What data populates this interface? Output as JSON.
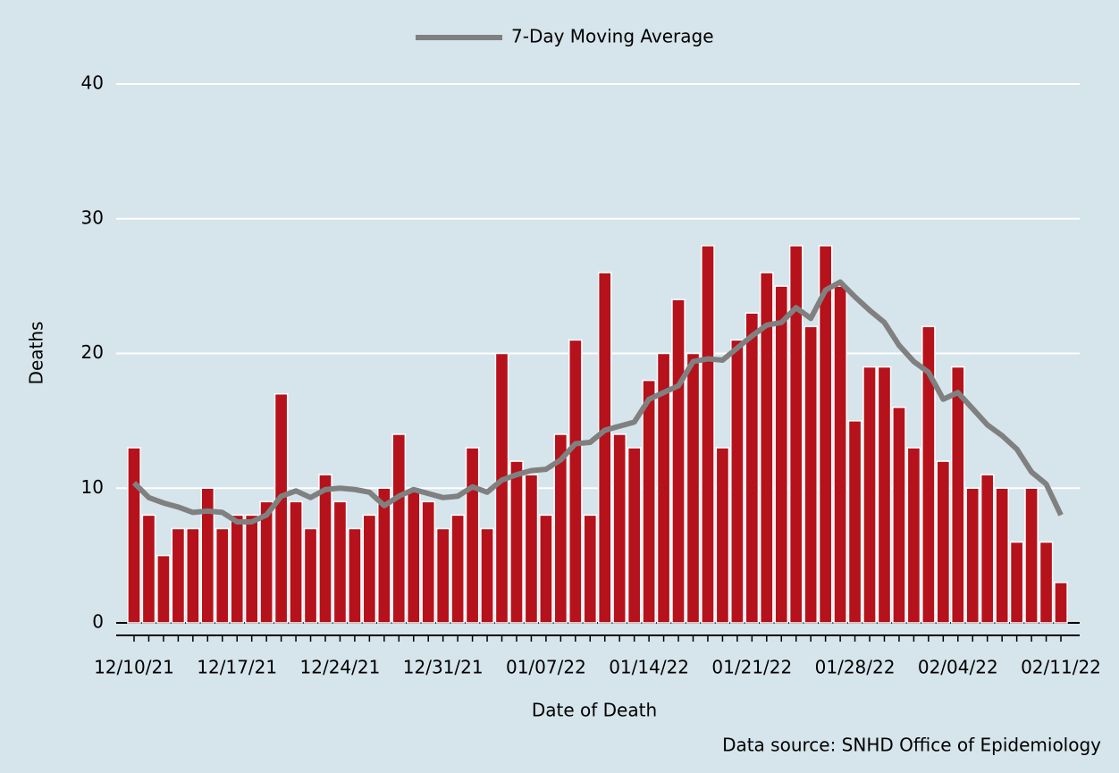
{
  "chart_data": {
    "type": "bar",
    "legend_title": "7-Day Moving Average",
    "y_label": "Deaths",
    "x_label": "Date of Death",
    "source": "Data source: SNHD Office of Epidemiology",
    "categories": [
      "12/10/21",
      null,
      null,
      null,
      null,
      null,
      null,
      "12/17/21",
      null,
      null,
      null,
      null,
      null,
      null,
      "12/24/21",
      null,
      null,
      null,
      null,
      null,
      null,
      "12/31/21",
      null,
      null,
      null,
      null,
      null,
      null,
      "01/07/22",
      null,
      null,
      null,
      null,
      null,
      null,
      "01/14/22",
      null,
      null,
      null,
      null,
      null,
      null,
      "01/21/22",
      null,
      null,
      null,
      null,
      null,
      null,
      "01/28/22",
      null,
      null,
      null,
      null,
      null,
      null,
      "02/04/22",
      null,
      null,
      null,
      null,
      null,
      null,
      "02/11/22"
    ],
    "series": [
      {
        "color": "#b5121b",
        "values": [
          13,
          8,
          5,
          7,
          7,
          10,
          7,
          8,
          8,
          9,
          17,
          9,
          7,
          11,
          9,
          7,
          8,
          10,
          14,
          10,
          9,
          7,
          8,
          13,
          7,
          20,
          12,
          11,
          8,
          14,
          21,
          8,
          26,
          14,
          13,
          18,
          20,
          24,
          20,
          28,
          13,
          21,
          23,
          26,
          25,
          28,
          22,
          28,
          25,
          15,
          19,
          19,
          16,
          13,
          22,
          12,
          19,
          10,
          11,
          10,
          6,
          10,
          6,
          3
        ]
      },
      {
        "name": "7-Day Moving Average",
        "type": "line",
        "color": "#808080",
        "values": [
          10.4,
          9.3,
          8.9,
          8.6,
          8.2,
          8.3,
          8.2,
          7.5,
          7.5,
          8.0,
          9.4,
          9.8,
          9.3,
          9.9,
          10.0,
          9.9,
          9.7,
          8.7,
          9.4,
          9.9,
          9.6,
          9.3,
          9.4,
          10.1,
          9.7,
          10.6,
          11.0,
          11.3,
          11.4,
          12.1,
          13.3,
          13.4,
          14.3,
          14.6,
          14.9,
          16.6,
          17.1,
          17.6,
          19.4,
          19.6,
          19.5,
          20.4,
          21.3,
          22.1,
          22.3,
          23.4,
          22.6,
          24.7,
          25.3,
          24.2,
          23.2,
          22.3,
          20.6,
          19.4,
          18.6,
          16.6,
          17.1,
          15.9,
          14.7,
          13.9,
          12.9,
          11.2,
          10.3,
          8.0
        ]
      }
    ],
    "ylim": [
      0,
      40
    ],
    "yticks": [
      0,
      10,
      20,
      30,
      40
    ],
    "grid": true,
    "legend": "top"
  }
}
